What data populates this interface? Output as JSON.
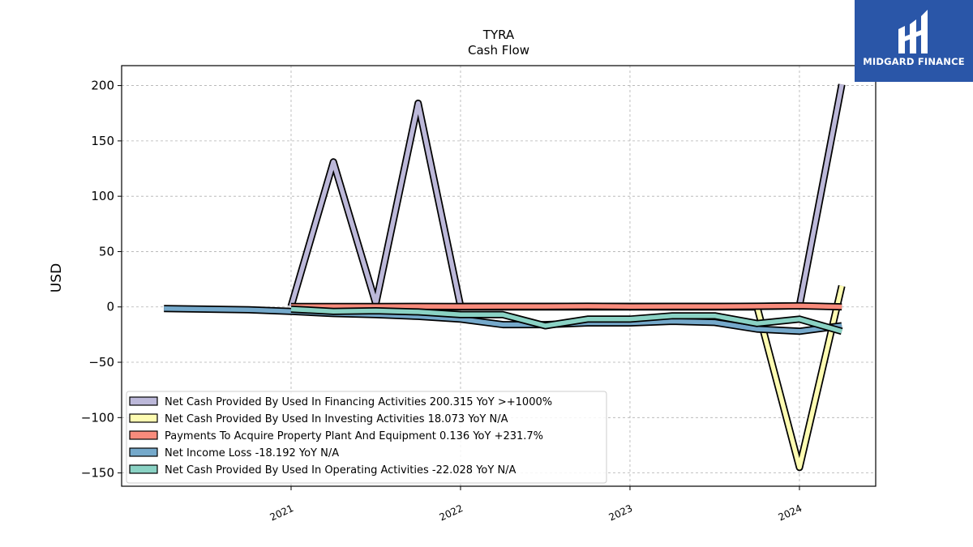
{
  "brand": {
    "name": "MIDGARD FINANCE",
    "color": "#2a56a8"
  },
  "chart_data": {
    "type": "line",
    "title": "TYRA",
    "subtitle": "Cash Flow",
    "ylabel": "USD",
    "xlabel": "",
    "ylim": [
      -162,
      218
    ],
    "xlim": [
      2020.0,
      2024.45
    ],
    "yticks": [
      200,
      150,
      100,
      50,
      0,
      -50,
      -100,
      -150
    ],
    "ytick_labels": [
      "200",
      "150",
      "100",
      "50",
      "0",
      "−50",
      "−100",
      "−150"
    ],
    "xticks": [
      2021,
      2022,
      2023,
      2024
    ],
    "xtick_labels": [
      "2021",
      "2022",
      "2023",
      "2024"
    ],
    "grid": true,
    "legend_position": "lower-left",
    "series": [
      {
        "name": "Net Cash Provided By Used In Financing Activities",
        "legend": "Net Cash Provided By Used In Financing Activities  200.315 YoY >+1000%",
        "color": "#bcb8d9",
        "x": [
          2021.0,
          2021.25,
          2021.5,
          2021.75,
          2022.0,
          2022.25,
          2022.5,
          2022.75,
          2023.0,
          2023.25,
          2023.5,
          2023.75,
          2024.0,
          2024.25
        ],
        "y": [
          0.5,
          131,
          3,
          184,
          0.5,
          0.5,
          0.5,
          0.5,
          0.5,
          0.5,
          0.5,
          0.5,
          1,
          201
        ]
      },
      {
        "name": "Net Cash Provided By Used In Investing Activities",
        "legend": "Net Cash Provided By Used In Investing Activities  18.073 YoY N/A",
        "color": "#fefcb2",
        "x": [
          2021.0,
          2021.25,
          2021.5,
          2021.75,
          2022.0,
          2022.25,
          2022.5,
          2022.75,
          2023.0,
          2023.25,
          2023.5,
          2023.75,
          2024.0,
          2024.25
        ],
        "y": [
          0,
          0,
          0,
          0,
          0,
          0,
          0,
          0,
          0,
          0,
          0,
          0,
          -145,
          19
        ]
      },
      {
        "name": "Payments To Acquire Property Plant And Equipment",
        "legend": "Payments To Acquire Property Plant And Equipment  0.136 YoY +231.7%",
        "color": "#f88b7c",
        "x": [
          2021.0,
          2021.25,
          2021.5,
          2021.75,
          2022.0,
          2022.25,
          2022.5,
          2022.75,
          2023.0,
          2023.25,
          2023.5,
          2023.75,
          2024.0,
          2024.25
        ],
        "y": [
          0.3,
          0.4,
          0.4,
          0.5,
          0.4,
          0.5,
          0.5,
          0.6,
          0.4,
          0.5,
          0.5,
          0.6,
          1.0,
          0.1
        ]
      },
      {
        "name": "Net Income Loss",
        "legend": "Net Income Loss  -18.192 YoY N/A",
        "color": "#75a9cb",
        "x": [
          2020.25,
          2020.75,
          2021.0,
          2021.25,
          2021.5,
          2021.75,
          2022.0,
          2022.25,
          2022.5,
          2022.75,
          2023.0,
          2023.25,
          2023.5,
          2023.75,
          2024.0,
          2024.25
        ],
        "y": [
          -1.5,
          -2.5,
          -4,
          -6,
          -7,
          -8.5,
          -11,
          -16,
          -16,
          -14.5,
          -14.5,
          -13,
          -14,
          -20,
          -22,
          -17
        ]
      },
      {
        "name": "Net Cash Provided By Used In Operating Activities",
        "legend": "Net Cash Provided By Used In Operating Activities  -22.028 YoY N/A",
        "color": "#8ad2c4",
        "x": [
          2021.0,
          2021.25,
          2021.5,
          2021.75,
          2022.0,
          2022.25,
          2022.5,
          2022.75,
          2023.0,
          2023.25,
          2023.5,
          2023.75,
          2024.0,
          2024.25
        ],
        "y": [
          -2,
          -4,
          -3.5,
          -4.5,
          -7,
          -7,
          -17,
          -11,
          -11,
          -8,
          -8,
          -15,
          -11,
          -22
        ]
      }
    ]
  }
}
